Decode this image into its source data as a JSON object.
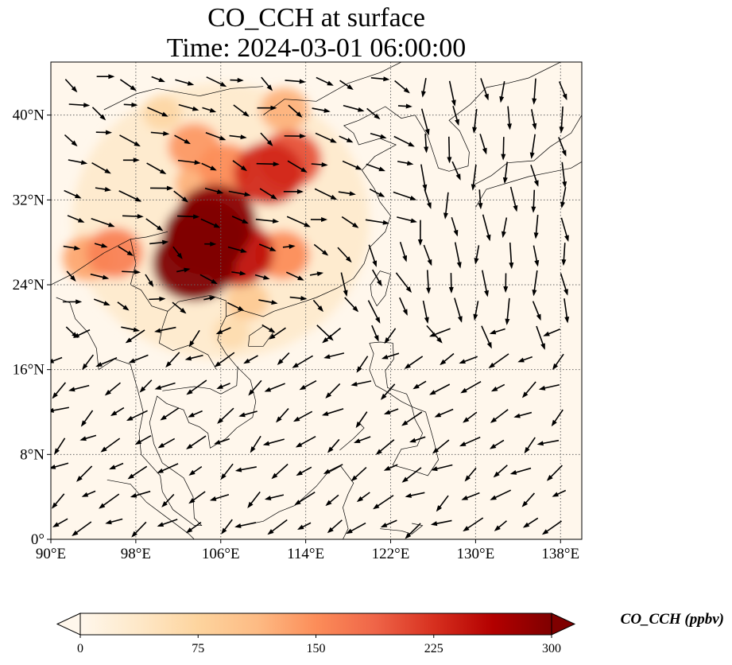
{
  "title": {
    "line1": "CO_CCH at surface",
    "line2": "Time: 2024-03-01 06:00:00"
  },
  "map": {
    "extent": {
      "lon_min": 90,
      "lon_max": 140,
      "lat_min": 0,
      "lat_max": 45
    },
    "lon_ticks": [
      90,
      98,
      106,
      114,
      122,
      130,
      138
    ],
    "lon_tick_labels": [
      "90°E",
      "98°E",
      "106°E",
      "114°E",
      "122°E",
      "130°E",
      "138°E"
    ],
    "lat_ticks": [
      0,
      8,
      16,
      24,
      32,
      40
    ],
    "lat_tick_labels": [
      "0°",
      "8°N",
      "16°N",
      "24°N",
      "32°N",
      "40°N"
    ],
    "gridlines": "dotted",
    "variable": "CO_CCH",
    "level": "surface",
    "hotspots": [
      {
        "lon": 104.5,
        "lat": 28.5,
        "value": 300
      },
      {
        "lon": 103.5,
        "lat": 26.0,
        "value": 300
      },
      {
        "lon": 105.5,
        "lat": 30.0,
        "value": 290
      },
      {
        "lon": 107.5,
        "lat": 27.0,
        "value": 250
      },
      {
        "lon": 110.5,
        "lat": 34.5,
        "value": 230
      },
      {
        "lon": 112.5,
        "lat": 35.8,
        "value": 200
      },
      {
        "lon": 106.5,
        "lat": 35.0,
        "value": 150
      },
      {
        "lon": 103.5,
        "lat": 37.0,
        "value": 140
      },
      {
        "lon": 112.0,
        "lat": 40.5,
        "value": 120
      },
      {
        "lon": 93.5,
        "lat": 26.5,
        "value": 130
      },
      {
        "lon": 96.0,
        "lat": 27.0,
        "value": 160
      },
      {
        "lon": 111.8,
        "lat": 26.8,
        "value": 150
      },
      {
        "lon": 108.5,
        "lat": 22.5,
        "value": 90
      },
      {
        "lon": 104.0,
        "lat": 33.5,
        "value": 120
      },
      {
        "lon": 107.0,
        "lat": 19.5,
        "value": 60
      },
      {
        "lon": 100.5,
        "lat": 40.2,
        "value": 70
      }
    ]
  },
  "colorbar": {
    "label": "CO_CCH (ppbv)",
    "ticks": [
      0,
      75,
      150,
      225,
      300
    ],
    "min": 0,
    "max": 300,
    "colormap": "OrRd",
    "colors": [
      "#fff7ec",
      "#fee8c8",
      "#fdd49e",
      "#fdbb84",
      "#fc8d59",
      "#ef6548",
      "#d7301f",
      "#b30000",
      "#7f0000"
    ],
    "extend": "both"
  }
}
